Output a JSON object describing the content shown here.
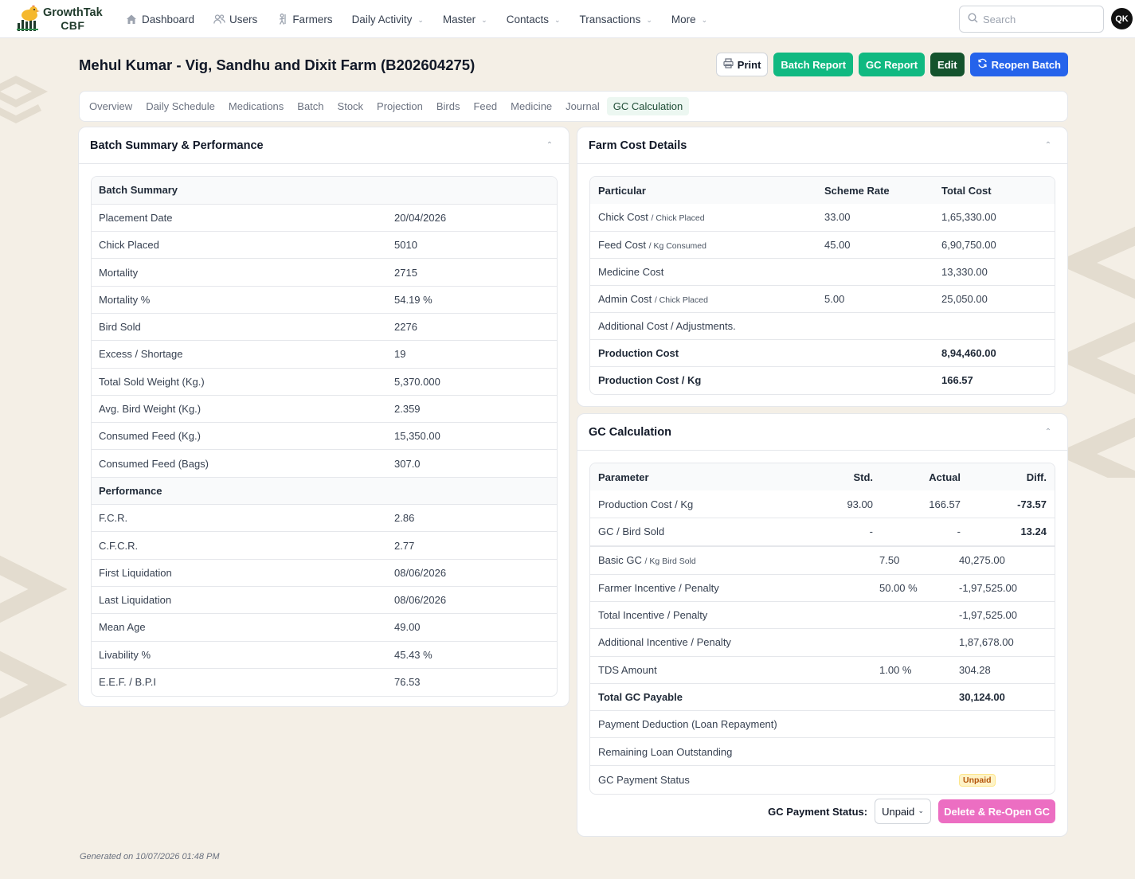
{
  "brand": {
    "line1": "GrowthTak",
    "line2": "CBF"
  },
  "nav": {
    "items": [
      {
        "label": "Dashboard",
        "icon": "home-icon",
        "dropdown": false
      },
      {
        "label": "Users",
        "icon": "users-icon",
        "dropdown": false
      },
      {
        "label": "Farmers",
        "icon": "farmer-icon",
        "dropdown": false
      },
      {
        "label": "Daily Activity",
        "icon": "",
        "dropdown": true
      },
      {
        "label": "Master",
        "icon": "",
        "dropdown": true
      },
      {
        "label": "Contacts",
        "icon": "",
        "dropdown": true
      },
      {
        "label": "Transactions",
        "icon": "",
        "dropdown": true
      },
      {
        "label": "More",
        "icon": "",
        "dropdown": true
      }
    ],
    "search_placeholder": "Search",
    "avatar_initials": "QK"
  },
  "page": {
    "title": "Mehul Kumar - Vig, Sandhu and Dixit Farm (B202604275)",
    "actions": {
      "print": "Print",
      "batch_report": "Batch Report",
      "gc_report": "GC Report",
      "edit": "Edit",
      "reopen": "Reopen Batch"
    }
  },
  "tabs": {
    "items": [
      "Overview",
      "Daily Schedule",
      "Medications",
      "Batch",
      "Stock",
      "Projection",
      "Birds",
      "Feed",
      "Medicine",
      "Journal",
      "GC Calculation"
    ],
    "active": "GC Calculation"
  },
  "summary": {
    "title": "Batch Summary & Performance",
    "section1": "Batch Summary",
    "rows1": [
      {
        "label": "Placement Date",
        "value": "20/04/2026"
      },
      {
        "label": "Chick Placed",
        "value": "5010"
      },
      {
        "label": "Mortality",
        "value": "2715"
      },
      {
        "label": "Mortality %",
        "value": "54.19 %"
      },
      {
        "label": "Bird Sold",
        "value": "2276"
      },
      {
        "label": "Excess / Shortage",
        "value": "19"
      },
      {
        "label": "Total Sold Weight (Kg.)",
        "value": "5,370.000"
      },
      {
        "label": "Avg. Bird Weight (Kg.)",
        "value": "2.359"
      },
      {
        "label": "Consumed Feed (Kg.)",
        "value": "15,350.00"
      },
      {
        "label": "Consumed Feed (Bags)",
        "value": "307.0"
      }
    ],
    "section2": "Performance",
    "rows2": [
      {
        "label": "F.C.R.",
        "value": "2.86"
      },
      {
        "label": "C.F.C.R.",
        "value": "2.77"
      },
      {
        "label": "First Liquidation",
        "value": "08/06/2026"
      },
      {
        "label": "Last Liquidation",
        "value": "08/06/2026"
      },
      {
        "label": "Mean Age",
        "value": "49.00"
      },
      {
        "label": "Livability %",
        "value": "45.43 %"
      },
      {
        "label": "E.E.F. / B.P.I",
        "value": "76.53"
      }
    ]
  },
  "farm_cost": {
    "title": "Farm Cost Details",
    "headers": {
      "particular": "Particular",
      "rate": "Scheme Rate",
      "total": "Total Cost"
    },
    "rows": [
      {
        "label": "Chick Cost",
        "sub": "/ Chick Placed",
        "rate": "33.00",
        "total": "1,65,330.00",
        "bold": false
      },
      {
        "label": "Feed Cost",
        "sub": "/ Kg Consumed",
        "rate": "45.00",
        "total": "6,90,750.00",
        "bold": false
      },
      {
        "label": "Medicine Cost",
        "sub": "",
        "rate": "",
        "total": "13,330.00",
        "bold": false
      },
      {
        "label": "Admin Cost",
        "sub": "/ Chick Placed",
        "rate": "5.00",
        "total": "25,050.00",
        "bold": false
      },
      {
        "label": "Additional Cost / Adjustments.",
        "sub": "",
        "rate": "",
        "total": "",
        "bold": false
      },
      {
        "label": "Production Cost",
        "sub": "",
        "rate": "",
        "total": "8,94,460.00",
        "bold": true
      },
      {
        "label": "Production Cost / Kg",
        "sub": "",
        "rate": "",
        "total": "166.57",
        "bold": true
      }
    ]
  },
  "gc": {
    "title": "GC Calculation",
    "headers": {
      "param": "Parameter",
      "std": "Std.",
      "actual": "Actual",
      "diff": "Diff."
    },
    "params": [
      {
        "label": "Production Cost / Kg",
        "std": "93.00",
        "actual": "166.57",
        "diff": "-73.57"
      },
      {
        "label": "GC / Bird Sold",
        "std": "-",
        "actual": "-",
        "diff": "13.24"
      }
    ],
    "rows": [
      {
        "label": "Basic GC",
        "sub": "/ Kg Bird Sold",
        "rate": "7.50",
        "value": "40,275.00",
        "bold": false
      },
      {
        "label": "Farmer Incentive / Penalty",
        "sub": "",
        "rate": "50.00 %",
        "value": "-1,97,525.00",
        "bold": false
      },
      {
        "label": "Total Incentive / Penalty",
        "sub": "",
        "rate": "",
        "value": "-1,97,525.00",
        "bold": false
      },
      {
        "label": "Additional Incentive / Penalty",
        "sub": "",
        "rate": "",
        "value": "1,87,678.00",
        "bold": false
      },
      {
        "label": "TDS Amount",
        "sub": "",
        "rate": "1.00 %",
        "value": "304.28",
        "bold": false
      },
      {
        "label": "Total GC Payable",
        "sub": "",
        "rate": "",
        "value": "30,124.00",
        "bold": true
      },
      {
        "label": "Payment Deduction (Loan Repayment)",
        "sub": "",
        "rate": "",
        "value": "",
        "bold": false
      },
      {
        "label": "Remaining Loan Outstanding",
        "sub": "",
        "rate": "",
        "value": "",
        "bold": false
      }
    ],
    "status_row": {
      "label": "GC Payment Status",
      "badge": "Unpaid"
    },
    "footer": {
      "label": "GC Payment Status:",
      "selected": "Unpaid",
      "delete_button": "Delete & Re-Open GC"
    }
  },
  "generated": "Generated on 10/07/2026 01:48 PM",
  "colors": {
    "green": "#10b981",
    "dark_green": "#14532d",
    "blue": "#2563eb",
    "pink": "#ec6ec2",
    "background": "#f4efe6"
  }
}
